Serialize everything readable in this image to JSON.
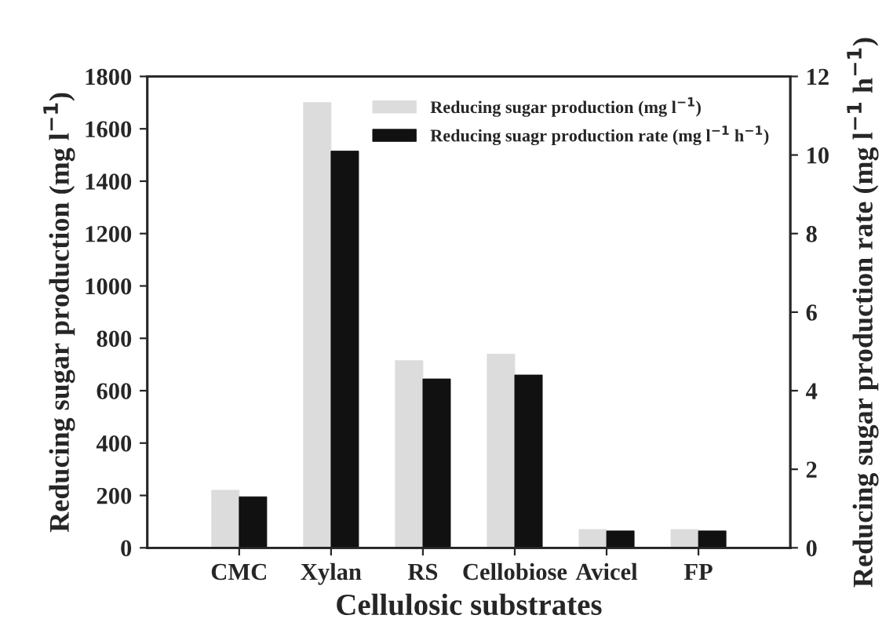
{
  "chart_data": {
    "type": "bar",
    "xlabel": "Cellulosic substrates",
    "ylabel": "Reducing sugar production (mg l$^{−1}$)",
    "y2label": "Reducing sugar production rate (mg l$^{−1}$ h$^{−1}$)",
    "categories": [
      "CMC",
      "Xylan",
      "RS",
      "Cellobiose",
      "Avicel",
      "FP"
    ],
    "series": [
      {
        "name": "Reducing sugar production (mg l$^{−1}$)",
        "color": "#dcdcdc",
        "values": [
          220,
          1700,
          715,
          740,
          70,
          70
        ]
      },
      {
        "name": "Reducing suagr production rate (mg l$^{−1}$ h$^{−1}$)",
        "color": "#111111",
        "axis": "y2",
        "values": [
          1.3,
          10.1,
          4.3,
          4.4,
          0.43,
          0.43
        ]
      }
    ],
    "ylim": [
      0,
      1800
    ],
    "yticks": [
      0,
      200,
      400,
      600,
      800,
      1000,
      1200,
      1400,
      1600,
      1800
    ],
    "y2lim": [
      0,
      12
    ],
    "y2ticks": [
      0,
      2,
      4,
      6,
      8,
      10,
      12
    ],
    "legend": "top right",
    "grid": false
  }
}
